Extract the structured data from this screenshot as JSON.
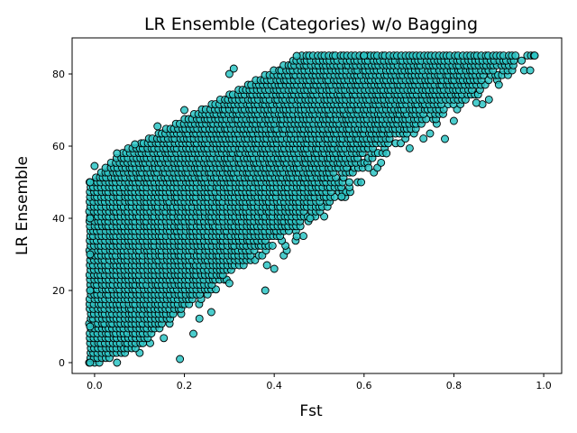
{
  "chart_data": {
    "type": "scatter",
    "title": "LR Ensemble (Categories) w/o Bagging",
    "xlabel": "Fst",
    "ylabel": "LR Ensemble",
    "xlim": [
      -0.05,
      1.04
    ],
    "ylim": [
      -3,
      90
    ],
    "x_ticks": [
      0.0,
      0.2,
      0.4,
      0.6,
      0.8,
      1.0
    ],
    "x_tick_labels": [
      "0.0",
      "0.2",
      "0.4",
      "0.6",
      "0.8",
      "1.0"
    ],
    "y_ticks": [
      0,
      20,
      40,
      60,
      80
    ],
    "y_tick_labels": [
      "0",
      "20",
      "40",
      "60",
      "80"
    ],
    "grid": false,
    "legend": "none",
    "marker_color": "#2bc4c4",
    "marker_edge_color": "#000000",
    "y_levels": [
      0,
      1.3,
      2.7,
      4.0,
      5.4,
      6.8,
      8.1,
      9.5,
      10.8,
      12.2,
      13.5,
      14.9,
      16.2,
      17.6,
      18.9,
      20.3,
      21.6,
      23.0,
      24.3,
      25.7,
      27.0,
      28.4,
      29.7,
      31.1,
      32.4,
      33.8,
      35.1,
      36.5,
      37.8,
      39.2,
      40.5,
      41.9,
      43.2,
      44.6,
      45.9,
      47.3,
      48.6,
      50.0,
      51.3,
      52.7,
      54.0,
      55.4,
      56.7,
      58.1,
      59.4,
      60.8,
      62.1,
      63.5,
      64.8,
      66.2,
      67.5,
      68.9,
      70.2,
      71.6,
      72.9,
      74.3,
      75.6,
      77.0,
      78.3,
      79.7,
      81.0,
      82.4,
      83.7,
      85.1
    ],
    "sample_points": [
      [
        -0.01,
        0
      ],
      [
        -0.01,
        10
      ],
      [
        -0.01,
        20
      ],
      [
        -0.01,
        30
      ],
      [
        -0.01,
        40
      ],
      [
        -0.01,
        50
      ],
      [
        0.0,
        54.5
      ],
      [
        0.05,
        58
      ],
      [
        0.09,
        60.5
      ],
      [
        0.14,
        65.5
      ],
      [
        0.2,
        70
      ],
      [
        0.3,
        80
      ],
      [
        0.31,
        81.5
      ],
      [
        0.45,
        85
      ],
      [
        0.6,
        85.1
      ],
      [
        0.98,
        85.1
      ],
      [
        0.97,
        81
      ],
      [
        0.9,
        77
      ],
      [
        0.85,
        72
      ],
      [
        0.8,
        67
      ],
      [
        0.78,
        62
      ],
      [
        0.65,
        58
      ],
      [
        0.61,
        54
      ],
      [
        0.55,
        46
      ],
      [
        0.48,
        40
      ],
      [
        0.45,
        35
      ],
      [
        0.4,
        26
      ],
      [
        0.38,
        20
      ],
      [
        0.3,
        22
      ],
      [
        0.26,
        14
      ],
      [
        0.22,
        8
      ],
      [
        0.19,
        1
      ],
      [
        0.05,
        0
      ]
    ]
  }
}
